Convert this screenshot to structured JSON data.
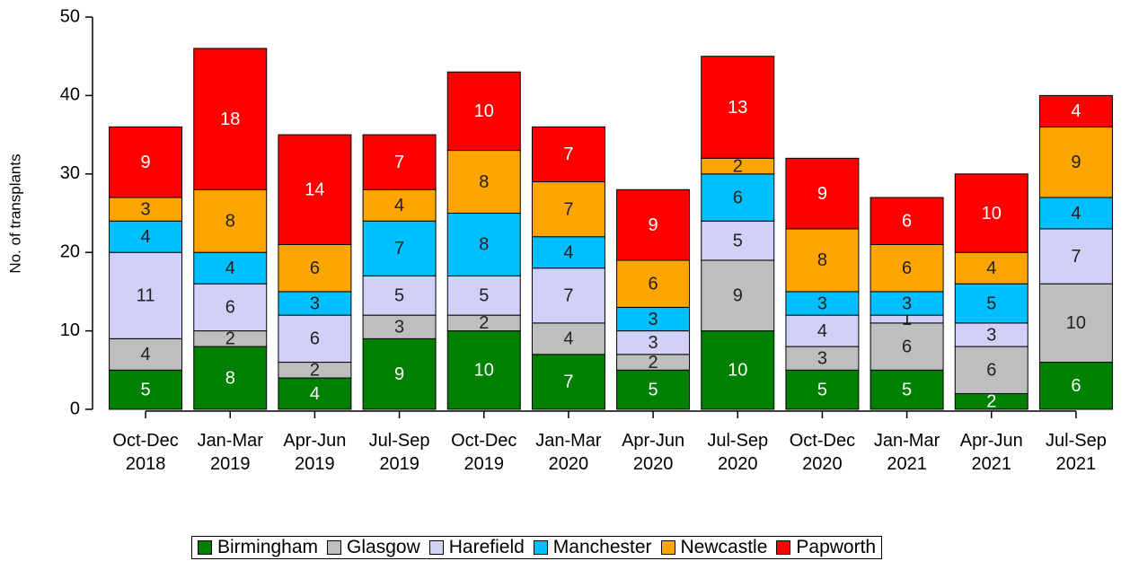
{
  "chart_data": {
    "type": "stacked_bar",
    "y_label": "No. of transplants",
    "categories": [
      "Oct-Dec 2018",
      "Jan-Mar 2019",
      "Apr-Jun 2019",
      "Jul-Sep 2019",
      "Oct-Dec 2019",
      "Jan-Mar 2020",
      "Apr-Jun 2020",
      "Jul-Sep 2020",
      "Oct-Dec 2020",
      "Jan-Mar 2021",
      "Apr-Jun 2021",
      "Jul-Sep 2021"
    ],
    "series": [
      {
        "name": "Birmingham",
        "color": "#008000",
        "label_color": "#ffffff",
        "values": [
          5,
          8,
          4,
          9,
          10,
          7,
          5,
          10,
          5,
          5,
          2,
          6
        ]
      },
      {
        "name": "Glasgow",
        "color": "#bebebe",
        "label_color": "#222222",
        "values": [
          4,
          2,
          2,
          3,
          2,
          4,
          2,
          9,
          3,
          6,
          6,
          10
        ]
      },
      {
        "name": "Harefield",
        "color": "#d0d0f8",
        "label_color": "#222222",
        "values": [
          11,
          6,
          6,
          5,
          5,
          7,
          3,
          5,
          4,
          1,
          3,
          7
        ]
      },
      {
        "name": "Manchester",
        "color": "#00bfff",
        "label_color": "#222222",
        "values": [
          4,
          4,
          3,
          7,
          8,
          4,
          3,
          6,
          3,
          3,
          5,
          4
        ]
      },
      {
        "name": "Newcastle",
        "color": "#ffa500",
        "label_color": "#222222",
        "values": [
          3,
          8,
          6,
          4,
          8,
          7,
          6,
          2,
          8,
          6,
          4,
          9
        ]
      },
      {
        "name": "Papworth",
        "color": "#ff0000",
        "label_color": "#ffffff",
        "values": [
          9,
          18,
          14,
          7,
          10,
          7,
          9,
          13,
          9,
          6,
          10,
          4
        ]
      }
    ],
    "ylim": [
      0,
      50
    ],
    "yticks": [
      0,
      10,
      20,
      30,
      40,
      50
    ]
  }
}
